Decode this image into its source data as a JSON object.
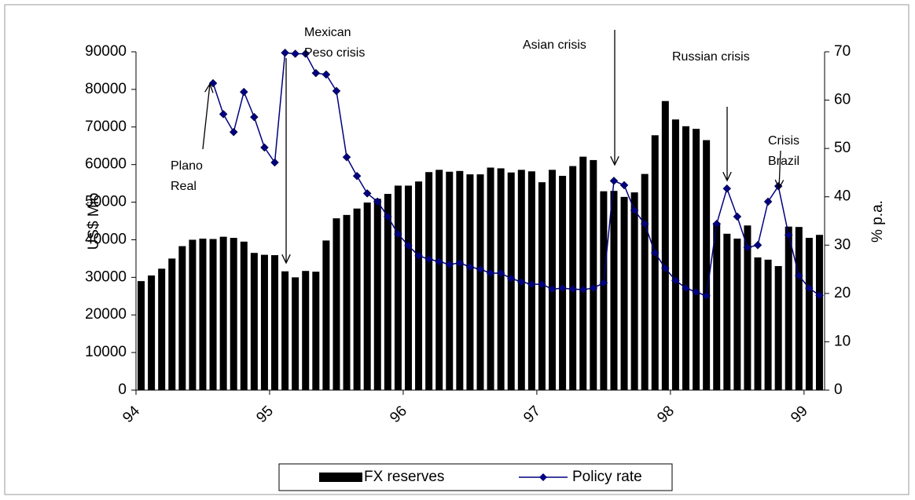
{
  "chart_data": {
    "type": "bar-line",
    "y_label": "US$ Mio",
    "y2_label": "% p.a.",
    "categories": [
      "94",
      null,
      null,
      null,
      null,
      null,
      null,
      null,
      null,
      null,
      null,
      null,
      null,
      "95",
      null,
      null,
      null,
      null,
      null,
      null,
      null,
      null,
      null,
      null,
      null,
      null,
      "96",
      null,
      null,
      null,
      null,
      null,
      null,
      null,
      null,
      null,
      null,
      null,
      null,
      "97",
      null,
      null,
      null,
      null,
      null,
      null,
      null,
      null,
      null,
      null,
      null,
      null,
      "98",
      null,
      null,
      null,
      null,
      null,
      null,
      null,
      null,
      null,
      null,
      null,
      null,
      "99",
      null
    ],
    "ylim": [
      0,
      90000
    ],
    "yticks": [
      0,
      10000,
      20000,
      30000,
      40000,
      50000,
      60000,
      70000,
      80000,
      90000
    ],
    "y2lim": [
      0,
      70
    ],
    "y2ticks": [
      0,
      10,
      20,
      30,
      40,
      50,
      60,
      70
    ],
    "series": [
      {
        "name": "FX reserves",
        "kind": "bar",
        "color": "#000000",
        "values": [
          29000,
          30500,
          32300,
          35000,
          38300,
          40000,
          40300,
          40200,
          40800,
          40500,
          39500,
          36500,
          36000,
          35900,
          31600,
          30000,
          31700,
          31500,
          39800,
          45700,
          46600,
          48300,
          49900,
          50900,
          52200,
          54400,
          54400,
          55500,
          58000,
          58600,
          58100,
          58300,
          57400,
          57400,
          59200,
          59000,
          57900,
          58600,
          58200,
          55300,
          58600,
          57000,
          59600,
          62100,
          61200,
          52900,
          53000,
          51400,
          52600,
          57500,
          67800,
          76900,
          72000,
          70200,
          69500,
          66500,
          44500,
          41600,
          40300,
          43800,
          35300,
          34700,
          33000,
          43500,
          43400,
          40500,
          41300
        ]
      },
      {
        "name": "Policy rate",
        "kind": "line",
        "axis": "y2",
        "color": "#000080",
        "values": [
          null,
          null,
          null,
          null,
          null,
          null,
          null,
          63.5,
          57.1,
          53.4,
          61.7,
          56.5,
          50.2,
          47.1,
          69.8,
          69.6,
          69.6,
          65.6,
          65.3,
          61.9,
          48.2,
          44.3,
          40.7,
          39.0,
          35.9,
          32.3,
          29.9,
          27.8,
          27.1,
          26.6,
          26.0,
          26.3,
          25.5,
          25.0,
          24.2,
          24.2,
          23.1,
          22.4,
          21.9,
          21.9,
          20.9,
          21.1,
          20.9,
          20.8,
          21.1,
          22.2,
          43.3,
          42.4,
          37.2,
          34.4,
          28.4,
          25.2,
          22.7,
          21.1,
          20.3,
          19.5,
          34.4,
          41.7,
          35.9,
          29.5,
          30.0,
          39.0,
          42.2,
          32.1,
          23.7,
          21.1,
          19.6
        ]
      }
    ],
    "annotations": [
      {
        "lines": [
          "Plano",
          "Real"
        ]
      },
      {
        "lines": [
          "Mexican",
          "Peso crisis"
        ]
      },
      {
        "lines": [
          "Asian crisis"
        ]
      },
      {
        "lines": [
          "Russian crisis"
        ]
      },
      {
        "lines": [
          "Crisis",
          "Brazil"
        ]
      }
    ]
  }
}
